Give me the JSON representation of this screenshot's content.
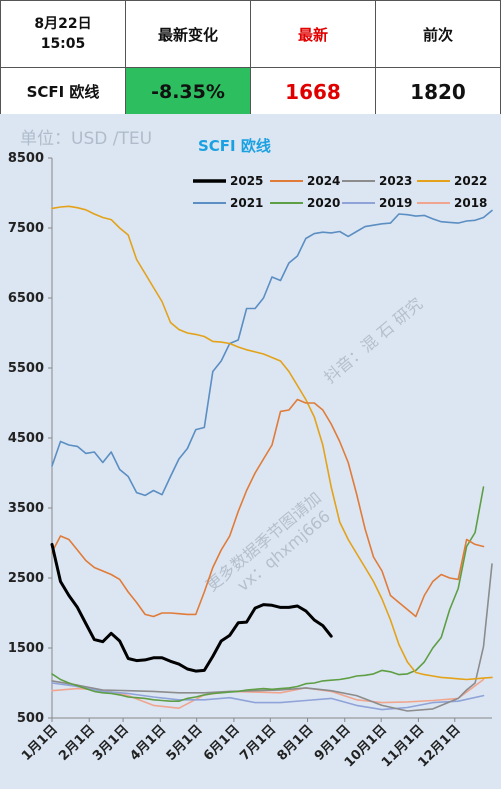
{
  "header": {
    "date": "8月22日",
    "time": "15:05",
    "col_change": "最新变化",
    "col_latest": "最新",
    "col_prev": "前次",
    "index_name": "SCFI 欧线",
    "change_value": "-8.35%",
    "latest_value": "1668",
    "prev_value": "1820"
  },
  "watermarks": [
    "抖音：混 石 研究",
    "更多数据季节图请加",
    "vx：qhxmj666"
  ],
  "chart_data": {
    "type": "line",
    "title": "SCFI 欧线",
    "unit_label": "单位：USD /TEU",
    "xlabel": "",
    "ylabel": "",
    "ylim": [
      500,
      8500
    ],
    "yticks": [
      500,
      1500,
      2500,
      3500,
      4500,
      5500,
      6500,
      7500,
      8500
    ],
    "ytick_labels": [
      "500",
      "1500",
      "2500",
      "3500",
      "4500",
      "5500",
      "6500",
      "7500",
      "8500"
    ],
    "x_tick_labels": [
      "1月1日",
      "2月1日",
      "3月1日",
      "4月1日",
      "5月1日",
      "6月1日",
      "7月1日",
      "8月1日",
      "9月1日",
      "10月1日",
      "11月1日",
      "12月1日"
    ],
    "legend_position": "top",
    "series": [
      {
        "name": "2025",
        "color": "#000000",
        "width": 3,
        "x": [
          0,
          1,
          2,
          3,
          4,
          5,
          6,
          7,
          8,
          9,
          10,
          11,
          12,
          13,
          14,
          15,
          16,
          17,
          18,
          19,
          20,
          21,
          22,
          23,
          24,
          25,
          26,
          27,
          28,
          29,
          30,
          31,
          32,
          33
        ],
        "values": [
          2980,
          2450,
          2250,
          2080,
          1850,
          1620,
          1590,
          1710,
          1600,
          1350,
          1320,
          1330,
          1360,
          1360,
          1310,
          1270,
          1200,
          1170,
          1180,
          1380,
          1600,
          1680,
          1860,
          1870,
          2070,
          2120,
          2110,
          2080,
          2080,
          2100,
          2030,
          1900,
          1820,
          1668
        ]
      },
      {
        "name": "2024",
        "color": "#e07b39",
        "width": 1.6,
        "x": [
          0,
          1,
          2,
          3,
          4,
          5,
          6,
          7,
          8,
          9,
          10,
          11,
          12,
          13,
          14,
          15,
          16,
          17,
          18,
          19,
          20,
          21,
          22,
          23,
          24,
          25,
          26,
          27,
          28,
          29,
          30,
          31,
          32,
          33,
          34,
          35,
          36,
          37,
          38,
          39,
          40,
          41,
          42,
          43,
          44,
          45,
          46,
          47,
          48,
          49,
          50,
          51
        ],
        "values": [
          2870,
          3100,
          3050,
          2900,
          2750,
          2650,
          2600,
          2550,
          2480,
          2300,
          2150,
          1980,
          1950,
          2000,
          2000,
          1990,
          1980,
          1980,
          2300,
          2650,
          2900,
          3100,
          3450,
          3750,
          4000,
          4200,
          4400,
          4880,
          4900,
          5050,
          5000,
          5000,
          4900,
          4700,
          4450,
          4150,
          3700,
          3200,
          2800,
          2600,
          2250,
          2150,
          2050,
          1950,
          2250,
          2450,
          2550,
          2500,
          2480,
          3050,
          2980,
          2950
        ]
      },
      {
        "name": "2023",
        "color": "#8c8c8c",
        "width": 1.6,
        "x": [
          0,
          3,
          6,
          9,
          12,
          15,
          18,
          21,
          24,
          27,
          30,
          33,
          36,
          39,
          42,
          45,
          48,
          49,
          50,
          51,
          52
        ],
        "values": [
          1030,
          970,
          900,
          890,
          880,
          860,
          860,
          880,
          890,
          900,
          930,
          890,
          820,
          680,
          600,
          630,
          780,
          900,
          1000,
          1520,
          2700
        ]
      },
      {
        "name": "2022",
        "color": "#e3a21a",
        "width": 1.6,
        "x": [
          0,
          1,
          2,
          3,
          4,
          5,
          6,
          7,
          8,
          9,
          10,
          11,
          12,
          13,
          14,
          15,
          16,
          17,
          18,
          19,
          20,
          21,
          22,
          23,
          24,
          25,
          26,
          27,
          28,
          29,
          30,
          31,
          32,
          33,
          34,
          35,
          36,
          37,
          38,
          39,
          40,
          41,
          42,
          43,
          44,
          45,
          46,
          47,
          48,
          49,
          50,
          51,
          52
        ],
        "values": [
          7780,
          7800,
          7810,
          7790,
          7760,
          7700,
          7650,
          7620,
          7500,
          7400,
          7050,
          6850,
          6650,
          6450,
          6150,
          6050,
          6000,
          5980,
          5950,
          5880,
          5870,
          5850,
          5800,
          5760,
          5730,
          5700,
          5650,
          5600,
          5450,
          5250,
          5050,
          4800,
          4400,
          3800,
          3300,
          3050,
          2850,
          2650,
          2450,
          2200,
          1900,
          1550,
          1300,
          1150,
          1120,
          1100,
          1080,
          1070,
          1060,
          1050,
          1060,
          1070,
          1080
        ]
      },
      {
        "name": "2021",
        "color": "#5b8ec2",
        "width": 1.6,
        "x": [
          0,
          1,
          2,
          3,
          4,
          5,
          6,
          7,
          8,
          9,
          10,
          11,
          12,
          13,
          14,
          15,
          16,
          17,
          18,
          19,
          20,
          21,
          22,
          23,
          24,
          25,
          26,
          27,
          28,
          29,
          30,
          31,
          32,
          33,
          34,
          35,
          36,
          37,
          38,
          39,
          40,
          41,
          42,
          43,
          44,
          45,
          46,
          47,
          48,
          49,
          50,
          51,
          52
        ],
        "values": [
          4100,
          4450,
          4400,
          4380,
          4280,
          4300,
          4150,
          4300,
          4050,
          3950,
          3720,
          3680,
          3750,
          3690,
          3950,
          4200,
          4350,
          4620,
          4650,
          5450,
          5600,
          5850,
          5900,
          6350,
          6350,
          6500,
          6800,
          6750,
          7000,
          7100,
          7350,
          7420,
          7440,
          7430,
          7450,
          7380,
          7450,
          7520,
          7540,
          7560,
          7570,
          7700,
          7690,
          7670,
          7680,
          7630,
          7590,
          7580,
          7570,
          7600,
          7610,
          7650,
          7750
        ]
      },
      {
        "name": "2020",
        "color": "#5e9e45",
        "width": 1.6,
        "x": [
          0,
          1,
          2,
          3,
          4,
          5,
          6,
          7,
          8,
          9,
          10,
          11,
          12,
          13,
          14,
          15,
          16,
          17,
          18,
          19,
          20,
          21,
          22,
          23,
          24,
          25,
          26,
          27,
          28,
          29,
          30,
          31,
          32,
          33,
          34,
          35,
          36,
          37,
          38,
          39,
          40,
          41,
          42,
          43,
          44,
          45,
          46,
          47,
          48,
          49,
          50,
          51
        ],
        "values": [
          1130,
          1050,
          1000,
          960,
          920,
          880,
          860,
          850,
          830,
          800,
          790,
          780,
          760,
          750,
          740,
          740,
          780,
          800,
          830,
          850,
          860,
          870,
          880,
          900,
          910,
          920,
          910,
          920,
          930,
          950,
          990,
          1000,
          1030,
          1040,
          1050,
          1070,
          1100,
          1110,
          1130,
          1180,
          1160,
          1120,
          1130,
          1180,
          1300,
          1500,
          1650,
          2050,
          2350,
          2950,
          3150,
          3800
        ]
      },
      {
        "name": "2019",
        "color": "#8fa3d9",
        "width": 1.6,
        "x": [
          0,
          3,
          6,
          9,
          12,
          15,
          18,
          21,
          24,
          27,
          30,
          33,
          36,
          39,
          42,
          45,
          48,
          51
        ],
        "values": [
          1000,
          950,
          880,
          850,
          800,
          760,
          760,
          790,
          720,
          720,
          750,
          780,
          680,
          620,
          650,
          720,
          740,
          820
        ]
      },
      {
        "name": "2018",
        "color": "#f0a58f",
        "width": 1.6,
        "x": [
          0,
          3,
          6,
          9,
          12,
          15,
          18,
          21,
          24,
          27,
          30,
          33,
          36,
          39,
          42,
          45,
          48,
          51
        ],
        "values": [
          890,
          920,
          900,
          820,
          680,
          640,
          830,
          880,
          870,
          860,
          930,
          880,
          760,
          720,
          730,
          750,
          780,
          1050
        ]
      }
    ]
  }
}
